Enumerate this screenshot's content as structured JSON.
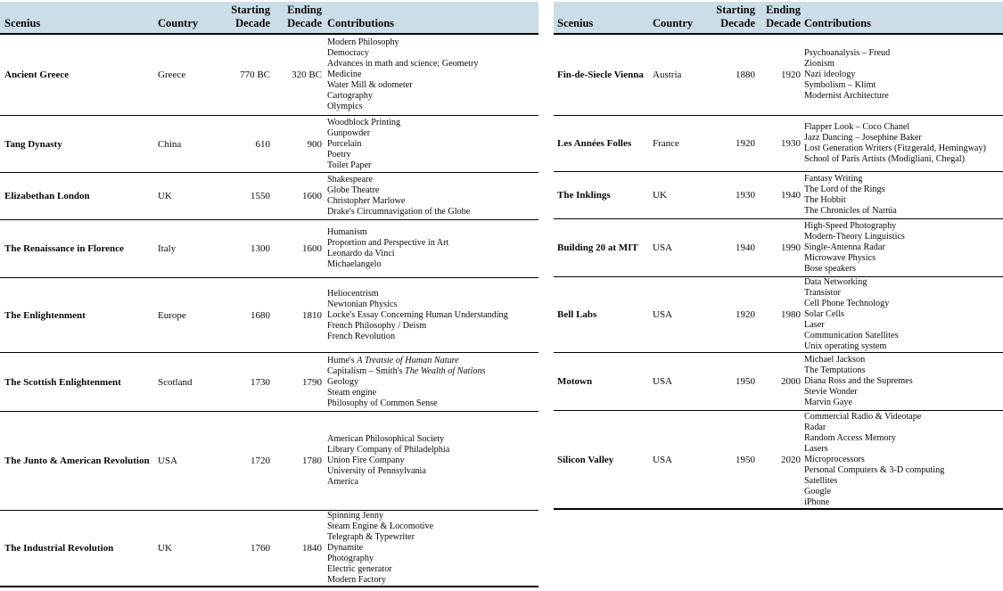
{
  "headers": {
    "scenius": "Scenius",
    "country": "Country",
    "starting_decade": "Starting Decade",
    "ending_decade": "Ending Decade",
    "contributions": "Contributions"
  },
  "colors": {
    "header_background": "#cbdde7",
    "border": "#000000",
    "text": "#0a0a0a",
    "page_background": "#ffffff"
  },
  "tables": {
    "left": {
      "rows": [
        {
          "scenius": "Ancient Greece",
          "country": "Greece",
          "starting_decade": "770 BC",
          "ending_decade": "320 BC",
          "contributions": [
            "Modern Philosophy",
            "Democracy",
            "Advances in math and science; Geometry",
            "Medicine",
            "Water Mill & odometer",
            "Cartography",
            "Olympics"
          ]
        },
        {
          "scenius": "Tang Dynasty",
          "country": "China",
          "starting_decade": "610",
          "ending_decade": "900",
          "contributions": [
            "Woodblock Printing",
            "Gunpowder",
            "Porcelain",
            "Poetry",
            "Toilet Paper"
          ]
        },
        {
          "scenius": "Elizabethan London",
          "country": "UK",
          "starting_decade": "1550",
          "ending_decade": "1600",
          "contributions": [
            "Shakespeare",
            "Globe Theatre",
            "Christopher Marlowe",
            "Drake's Circumnavigation of the Globe"
          ]
        },
        {
          "scenius": "The Renaissance in Florence",
          "country": "Italy",
          "starting_decade": "1300",
          "ending_decade": "1600",
          "contributions": [
            "Humanism",
            "Proportion and Perspective in Art",
            "Leonardo da Vinci",
            "Michaelangelo"
          ]
        },
        {
          "scenius": "The Enlightenment",
          "country": "Europe",
          "starting_decade": "1680",
          "ending_decade": "1810",
          "contributions": [
            "Heliocentrism",
            "Newtonian Physics",
            "Locke's Essay Concerning Human Understanding",
            "French Philosophy / Deism",
            "French Revolution"
          ]
        },
        {
          "scenius": "The Scottish Enlightenment",
          "country": "Scotland",
          "starting_decade": "1730",
          "ending_decade": "1790",
          "contributions": [
            "Hume's *A Treatsie of Human Nature*",
            "Capitalism – Smith's *The Wealth of Nations*",
            "Geology",
            "Steam engine",
            "Philosophy of Common Sense"
          ]
        },
        {
          "scenius": "The Junto & American Revolution",
          "country": "USA",
          "starting_decade": "1720",
          "ending_decade": "1780",
          "contributions": [
            "American Philosophical Society",
            "Library Company of Philadelphia",
            "Union Fire Company",
            "University of Pennsylvania",
            "America"
          ]
        },
        {
          "scenius": "The Industrial Revolution",
          "country": "UK",
          "starting_decade": "1760",
          "ending_decade": "1840",
          "contributions": [
            "Spinning Jenny",
            "Steam Engine & Locomotive",
            "Telegraph & Typewriter",
            "Dynamite",
            "Photography",
            "Electric generator",
            "Modern Factory"
          ]
        }
      ]
    },
    "right": {
      "rows": [
        {
          "scenius": "Fin-de-Siecle Vienna",
          "country": "Austria",
          "starting_decade": "1880",
          "ending_decade": "1920",
          "contributions": [
            "Psychoanalysis – Freud",
            "Zionism",
            "Nazi ideology",
            "Symbolism – Klimt",
            "Modernist Architecture"
          ]
        },
        {
          "scenius": "Les Années Folles",
          "country": "France",
          "starting_decade": "1920",
          "ending_decade": "1930",
          "contributions": [
            "Flapper Look – Coco Chanel",
            "Jazz Dancing – Josephine Baker",
            "Lost Generation Writers (Fitzgerald, Hemingway)",
            "School of Paris Artists (Modigliani, Chegal)"
          ]
        },
        {
          "scenius": "The Inklings",
          "country": "UK",
          "starting_decade": "1930",
          "ending_decade": "1940",
          "contributions": [
            "Fantasy Writing",
            "The Lord of the Rings",
            "The Hobbit",
            "The Chronicles of Narnia"
          ]
        },
        {
          "scenius": "Building 20 at MIT",
          "country": "USA",
          "starting_decade": "1940",
          "ending_decade": "1990",
          "contributions": [
            "High-Speed Photography",
            "Modern-Theory Linguistics",
            "Single-Antenna Radar",
            "Microwave Physics",
            "Bose speakers"
          ]
        },
        {
          "scenius": "Bell Labs",
          "country": "USA",
          "starting_decade": "1920",
          "ending_decade": "1980",
          "contributions": [
            "Data Networking",
            "Transistor",
            "Cell Phone Technology",
            "Solar Cells",
            "Laser",
            "Communication Satellites",
            "Unix operating system"
          ]
        },
        {
          "scenius": "Motown",
          "country": "USA",
          "starting_decade": "1950",
          "ending_decade": "2000",
          "contributions": [
            "Michael Jackson",
            "The Temptations",
            "Diana Ross and the Supremes",
            "Stevie Wonder",
            "Marvin Gaye"
          ]
        },
        {
          "scenius": "Silicon Valley",
          "country": "USA",
          "starting_decade": "1950",
          "ending_decade": "2020",
          "contributions": [
            "Commercial Radio & Videotape",
            "Radar",
            "Random Access Memory",
            "Lasers",
            "Microprocessors",
            "Personal Computers & 3-D computing",
            "Satellites",
            "Google",
            "iPhone"
          ]
        }
      ]
    }
  }
}
